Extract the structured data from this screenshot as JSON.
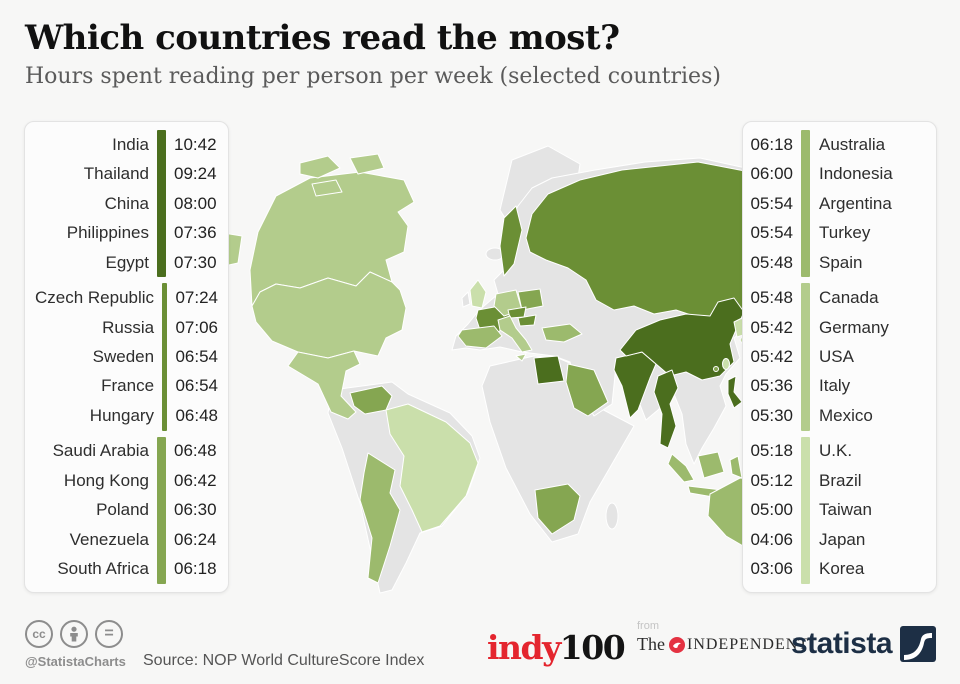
{
  "title": "Which countries read the most?",
  "subtitle": "Hours spent reading per person per week (selected countries)",
  "left_panel": {
    "groups": [
      {
        "color": "#4b6e1e",
        "rows": [
          {
            "country": "India",
            "time": "10:42"
          },
          {
            "country": "Thailand",
            "time": "09:24"
          },
          {
            "country": "China",
            "time": "08:00"
          },
          {
            "country": "Philippines",
            "time": "07:36"
          },
          {
            "country": "Egypt",
            "time": "07:30"
          }
        ]
      },
      {
        "color": "#6b8f35",
        "rows": [
          {
            "country": "Czech Republic",
            "time": "07:24"
          },
          {
            "country": "Russia",
            "time": "07:06"
          },
          {
            "country": "Sweden",
            "time": "06:54"
          },
          {
            "country": "France",
            "time": "06:54"
          },
          {
            "country": "Hungary",
            "time": "06:48"
          }
        ]
      },
      {
        "color": "#85a651",
        "rows": [
          {
            "country": "Saudi Arabia",
            "time": "06:48"
          },
          {
            "country": "Hong Kong",
            "time": "06:42"
          },
          {
            "country": "Poland",
            "time": "06:30"
          },
          {
            "country": "Venezuela",
            "time": "06:24"
          },
          {
            "country": "South Africa",
            "time": "06:18"
          }
        ]
      }
    ]
  },
  "right_panel": {
    "groups": [
      {
        "color": "#9cba6d",
        "rows": [
          {
            "country": "Australia",
            "time": "06:18"
          },
          {
            "country": "Indonesia",
            "time": "06:00"
          },
          {
            "country": "Argentina",
            "time": "05:54"
          },
          {
            "country": "Turkey",
            "time": "05:54"
          },
          {
            "country": "Spain",
            "time": "05:48"
          }
        ]
      },
      {
        "color": "#b3cc8c",
        "rows": [
          {
            "country": "Canada",
            "time": "05:48"
          },
          {
            "country": "Germany",
            "time": "05:42"
          },
          {
            "country": "USA",
            "time": "05:42"
          },
          {
            "country": "Italy",
            "time": "05:36"
          },
          {
            "country": "Mexico",
            "time": "05:30"
          }
        ]
      },
      {
        "color": "#cadfab",
        "rows": [
          {
            "country": "U.K.",
            "time": "05:18"
          },
          {
            "country": "Brazil",
            "time": "05:12"
          },
          {
            "country": "Taiwan",
            "time": "05:00"
          },
          {
            "country": "Japan",
            "time": "04:06"
          },
          {
            "country": "Korea",
            "time": "03:06"
          }
        ]
      }
    ]
  },
  "chart_data": {
    "type": "heatmap",
    "subtype": "choropleth-world-map",
    "title": "Which countries read the most?",
    "subtitle": "Hours spent reading per person per week (selected countries)",
    "unit": "hours:minutes per person per week",
    "legend_position": "side-panels",
    "points": [
      {
        "country": "India",
        "time": "10:42"
      },
      {
        "country": "Thailand",
        "time": "09:24"
      },
      {
        "country": "China",
        "time": "08:00"
      },
      {
        "country": "Philippines",
        "time": "07:36"
      },
      {
        "country": "Egypt",
        "time": "07:30"
      },
      {
        "country": "Czech Republic",
        "time": "07:24"
      },
      {
        "country": "Russia",
        "time": "07:06"
      },
      {
        "country": "Sweden",
        "time": "06:54"
      },
      {
        "country": "France",
        "time": "06:54"
      },
      {
        "country": "Hungary",
        "time": "06:48"
      },
      {
        "country": "Saudi Arabia",
        "time": "06:48"
      },
      {
        "country": "Hong Kong",
        "time": "06:42"
      },
      {
        "country": "Poland",
        "time": "06:30"
      },
      {
        "country": "Venezuela",
        "time": "06:24"
      },
      {
        "country": "South Africa",
        "time": "06:18"
      },
      {
        "country": "Australia",
        "time": "06:18"
      },
      {
        "country": "Indonesia",
        "time": "06:00"
      },
      {
        "country": "Argentina",
        "time": "05:54"
      },
      {
        "country": "Turkey",
        "time": "05:54"
      },
      {
        "country": "Spain",
        "time": "05:48"
      },
      {
        "country": "Canada",
        "time": "05:48"
      },
      {
        "country": "Germany",
        "time": "05:42"
      },
      {
        "country": "USA",
        "time": "05:42"
      },
      {
        "country": "Italy",
        "time": "05:36"
      },
      {
        "country": "Mexico",
        "time": "05:30"
      },
      {
        "country": "U.K.",
        "time": "05:18"
      },
      {
        "country": "Brazil",
        "time": "05:12"
      },
      {
        "country": "Taiwan",
        "time": "05:00"
      },
      {
        "country": "Japan",
        "time": "04:06"
      },
      {
        "country": "Korea",
        "time": "03:06"
      }
    ]
  },
  "map": {
    "colors": {
      "g1": "#4b6e1e",
      "g2": "#6b8f35",
      "g3": "#85a651",
      "g4": "#9cba6d",
      "g5": "#b3cc8c",
      "g6": "#cadfab",
      "land": "#e4e4e4",
      "border": "#ffffff"
    }
  },
  "footer": {
    "handle": "@StatistaCharts",
    "source": "Source: NOP World CultureScore Index",
    "indy_red": "indy",
    "indy_black": "100",
    "indy_red_color": "#e4252e",
    "from_label": "from",
    "independent_the": "The",
    "independent_name": "INDEPENDENT",
    "independent_accent_red": "#e43242",
    "statista_label": "statista",
    "statista_navy": "#1d2f45",
    "cc_label": "cc",
    "cc_equals": "="
  }
}
